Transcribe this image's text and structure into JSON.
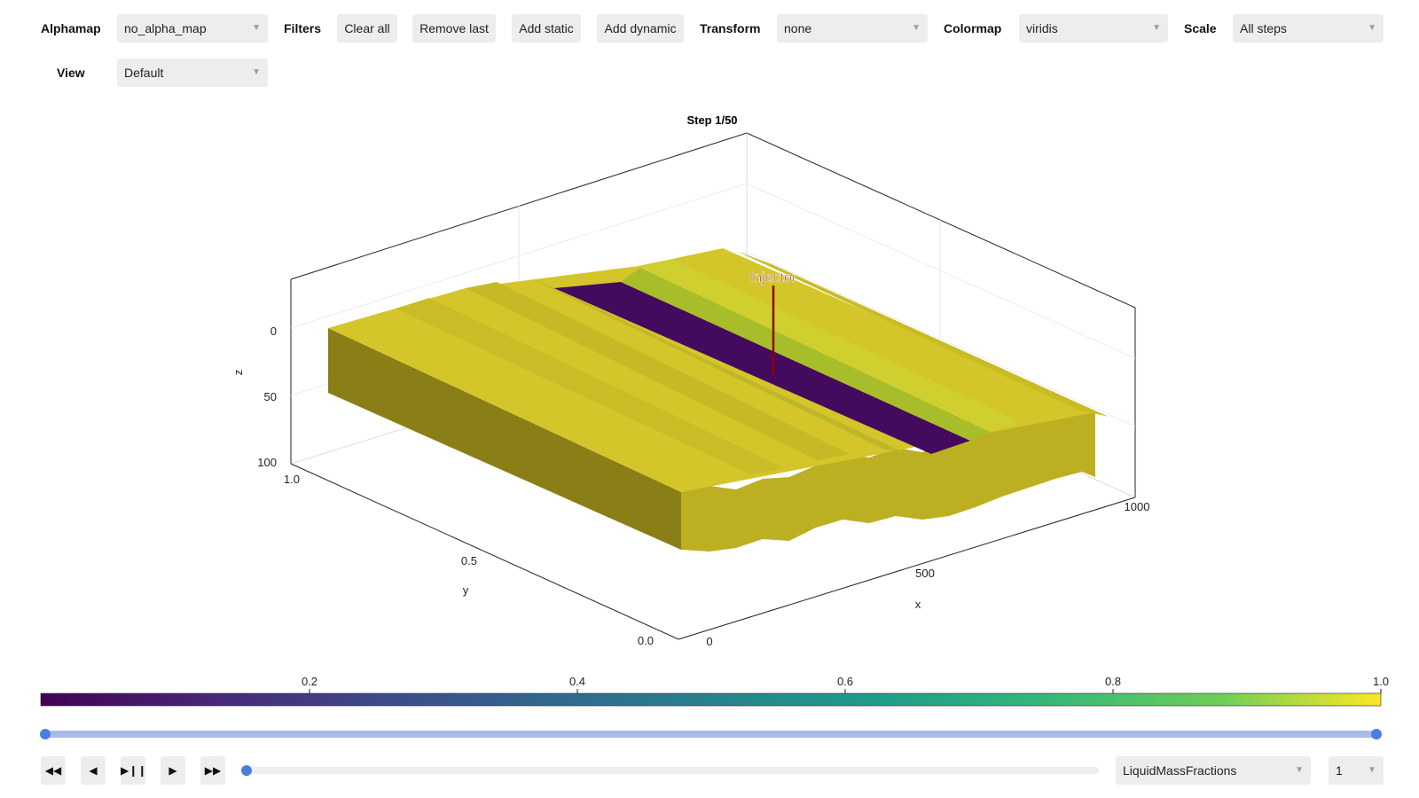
{
  "toolbar": {
    "alphamap_label": "Alphamap",
    "alphamap_value": "no_alpha_map",
    "filters_label": "Filters",
    "clear_all": "Clear all",
    "remove_last": "Remove last",
    "add_static": "Add static",
    "add_dynamic": "Add dynamic",
    "transform_label": "Transform",
    "transform_value": "none",
    "colormap_label": "Colormap",
    "colormap_value": "viridis",
    "scale_label": "Scale",
    "scale_value": "All steps",
    "view_label": "View",
    "view_value": "Default"
  },
  "plot": {
    "title": "Step 1/50",
    "well_label": "Injector",
    "axes": {
      "x_label": "x",
      "x_ticks": [
        "0",
        "500",
        "1000"
      ],
      "y_label": "y",
      "y_ticks": [
        "0.0",
        "0.5",
        "1.0"
      ],
      "z_label": "z",
      "z_ticks": [
        "0",
        "50",
        "100"
      ]
    }
  },
  "colorbar": {
    "colormap": "viridis",
    "ticks": [
      "0.2",
      "0.4",
      "0.6",
      "0.8",
      "1.0"
    ],
    "range": [
      0.0,
      1.0
    ]
  },
  "range_slider": {
    "low": 0.0,
    "high": 1.0
  },
  "playback": {
    "rewind_icon": "fast-backward-icon",
    "back_icon": "step-back-icon",
    "playpause_icon": "play-pause-icon",
    "play_icon": "play-icon",
    "forward_icon": "fast-forward-icon",
    "step_fraction": 0.0,
    "variable_value": "LiquidMassFractions",
    "component_value": "1"
  },
  "icons": {
    "dropdown": "chevron-down-icon"
  }
}
